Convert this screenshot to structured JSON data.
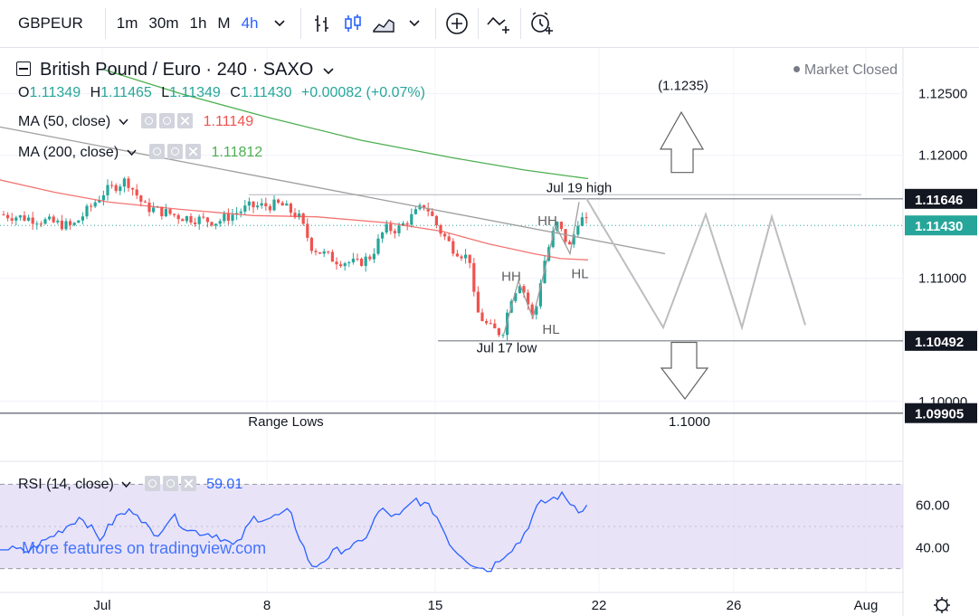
{
  "toolbar": {
    "symbol": "GBPEUR",
    "intervals": [
      "1m",
      "30m",
      "1h",
      "M",
      "4h"
    ],
    "active_interval": "4h",
    "icons": [
      "bar-chart-icon",
      "candles-icon",
      "area-chart-icon",
      "chevron-down-icon",
      "add-indicator-icon",
      "compare-icon",
      "alert-icon"
    ]
  },
  "header": {
    "title": "British Pound / Euro · 240 · SAXO",
    "status": "Market Closed",
    "ohlc": {
      "o": "1.11349",
      "h": "1.11465",
      "l": "1.11349",
      "c": "1.11430",
      "change": "+0.00082 (+0.07%)"
    }
  },
  "indicators": {
    "ma50": {
      "label": "MA (50, close)",
      "value": "1.11149",
      "color": "#ef5350"
    },
    "ma200": {
      "label": "MA (200, close)",
      "value": "1.11812",
      "color": "#4caf50"
    },
    "rsi": {
      "label": "RSI (14, close)",
      "value": "59.01",
      "color": "#2962ff",
      "band_color": "#e1d9f5"
    }
  },
  "watermark": "More features on tradingview.com",
  "chart_data": {
    "type": "candlestick",
    "ylim": [
      1.0955,
      1.1285
    ],
    "y_ticks": [
      "1.12500",
      "1.12000",
      "1.11000",
      "1.10000"
    ],
    "x_ticks": [
      "Jul",
      "8",
      "15",
      "22",
      "26",
      "Aug"
    ],
    "price_labels": [
      {
        "text": "1.11646",
        "value": 1.11646,
        "color": "#131722"
      },
      {
        "text": "1.11430",
        "value": 1.1143,
        "color": "#26a69a"
      },
      {
        "text": "1.10492",
        "value": 1.10492,
        "color": "#131722"
      },
      {
        "text": "1.09905",
        "value": 1.09905,
        "color": "#131722"
      }
    ],
    "annotations": [
      {
        "text": "(1.1235)",
        "x": 755,
        "price": 1.1253
      },
      {
        "text": "Jul 19 high",
        "x": 640,
        "price": 1.117
      },
      {
        "text": "HH",
        "x": 605,
        "price": 1.1143
      },
      {
        "text": "HH",
        "x": 565,
        "price": 1.1098
      },
      {
        "text": "HL",
        "x": 641,
        "price": 1.11
      },
      {
        "text": "HL",
        "x": 609,
        "price": 1.1055
      },
      {
        "text": "Jul 17 low",
        "x": 560,
        "price": 1.104
      },
      {
        "text": "Range Lows",
        "x": 316,
        "price": 1.098
      },
      {
        "text": "1.1000",
        "x": 762,
        "price": 1.098
      }
    ],
    "levels": [
      {
        "name": "jul19-high",
        "value": 1.11646
      },
      {
        "name": "jul17-low",
        "value": 1.10492
      },
      {
        "name": "range-lows",
        "value": 1.09905
      }
    ],
    "series": [
      {
        "name": "MA (50, close)",
        "color": "#ef5350"
      },
      {
        "name": "MA (200, close)",
        "color": "#4caf50"
      }
    ],
    "rsi": {
      "ylim": [
        20,
        80
      ],
      "ticks": [
        "60.00",
        "40.00"
      ],
      "band": [
        30,
        70
      ]
    }
  }
}
